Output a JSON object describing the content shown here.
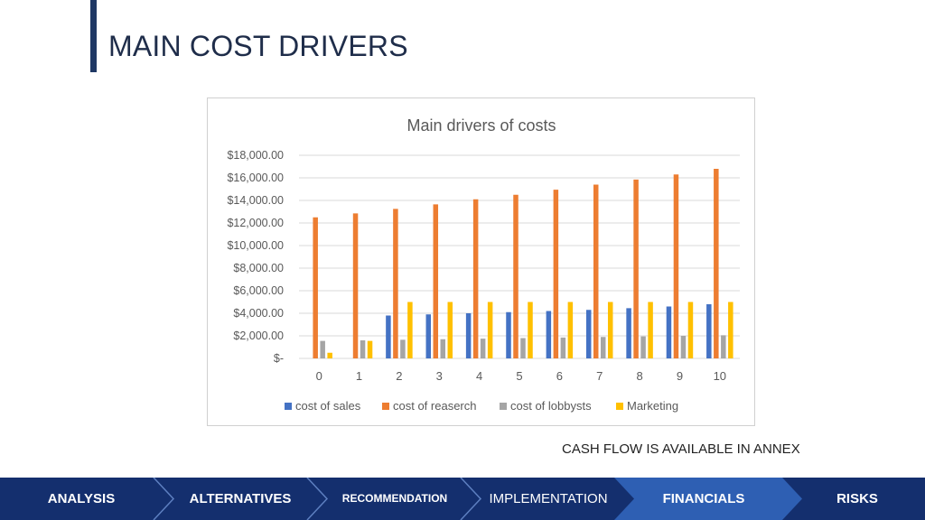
{
  "slide": {
    "title": "MAIN COST DRIVERS",
    "note": "CASH FLOW IS AVAILABLE IN ANNEX"
  },
  "nav": {
    "items": [
      {
        "label": "ANALYSIS",
        "active": false
      },
      {
        "label": "ALTERNATIVES",
        "active": false
      },
      {
        "label": "RECOMMENDATION",
        "active": false
      },
      {
        "label": "IMPLEMENTATION",
        "active": false
      },
      {
        "label": "FINANCIALS",
        "active": true
      },
      {
        "label": "RISKS",
        "active": false
      }
    ],
    "colors": {
      "bar": "#142f6e",
      "active": "#2e5fb3"
    }
  },
  "chart_data": {
    "type": "bar",
    "title": "Main drivers of costs",
    "categories": [
      "0",
      "1",
      "2",
      "3",
      "4",
      "5",
      "6",
      "7",
      "8",
      "9",
      "10"
    ],
    "ylim": [
      0,
      18000
    ],
    "yticks": [
      0,
      2000,
      4000,
      6000,
      8000,
      10000,
      12000,
      14000,
      16000,
      18000
    ],
    "ytick_labels": [
      "$-",
      "$2,000.00",
      "$4,000.00",
      "$6,000.00",
      "$8,000.00",
      "$10,000.00",
      "$12,000.00",
      "$14,000.00",
      "$16,000.00",
      "$18,000.00"
    ],
    "grid": true,
    "legend_position": "bottom",
    "series": [
      {
        "name": "cost of sales",
        "color": "#4472c4",
        "values": [
          0,
          0,
          3800,
          3900,
          4000,
          4100,
          4200,
          4300,
          4450,
          4600,
          4800
        ]
      },
      {
        "name": "cost of reaserch",
        "color": "#ed7d31",
        "values": [
          12500,
          12850,
          13250,
          13650,
          14100,
          14500,
          14950,
          15400,
          15850,
          16300,
          16800
        ]
      },
      {
        "name": "cost of lobbysts",
        "color": "#a5a5a5",
        "values": [
          1550,
          1600,
          1650,
          1700,
          1750,
          1800,
          1850,
          1900,
          1950,
          2000,
          2050
        ]
      },
      {
        "name": "Marketing",
        "color": "#ffc000",
        "values": [
          500,
          1550,
          5000,
          5000,
          5000,
          5000,
          5000,
          5000,
          5000,
          5000,
          5000
        ]
      }
    ]
  }
}
